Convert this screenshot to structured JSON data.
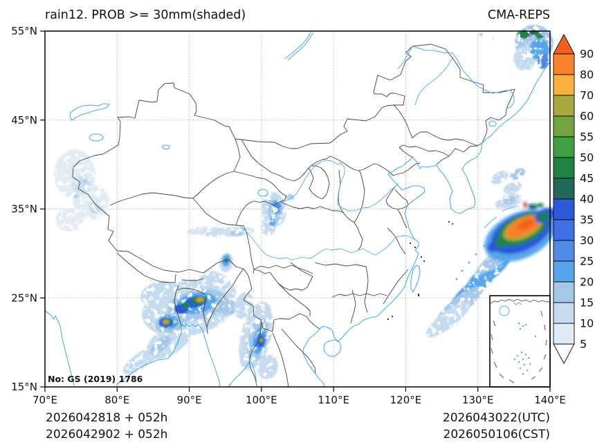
{
  "header": {
    "title": "rain12. PROB >= 30mm(shaded)",
    "model": "CMA-REPS"
  },
  "axes": {
    "lon_tick_labels": [
      "70°E",
      "80°E",
      "90°E",
      "100°E",
      "110°E",
      "120°E",
      "130°E",
      "140°E"
    ],
    "lat_tick_labels": [
      "55°N",
      "45°N",
      "35°N",
      "25°N",
      "15°N"
    ]
  },
  "colorbar": {
    "tick_labels": [
      "90",
      "80",
      "70",
      "60",
      "55",
      "50",
      "45",
      "40",
      "35",
      "30",
      "25",
      "20",
      "15",
      "10",
      "5"
    ],
    "segment_colors_top_to_bottom": [
      "#f9812a",
      "#fbb03f",
      "#a6a93f",
      "#74a345",
      "#3f9e41",
      "#1f8340",
      "#23685a",
      "#2b59d8",
      "#416fe3",
      "#4e8ae6",
      "#57a6ea",
      "#a6c8e8",
      "#c6dcee",
      "#dfeaf3"
    ],
    "over_color": "#f4611e",
    "under_color": "#ffffff"
  },
  "footer": {
    "init_line_utc": "2026042818 + 052h",
    "init_line_cst": "2026042902 + 052h",
    "valid_line_utc": "2026043022(UTC)",
    "valid_line_cst": "2026050106(CST)"
  },
  "map": {
    "license_note": "No: GS (2019) 1786"
  }
}
